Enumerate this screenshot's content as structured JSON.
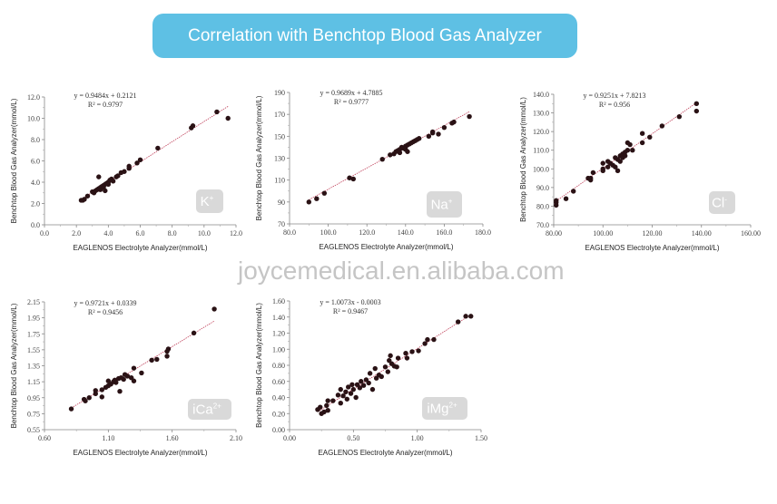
{
  "title": "Correlation with Benchtop Blood Gas Analyzer",
  "watermark": "joycemedical.en.alibaba.com",
  "colors": {
    "title_bg": "#5ec0e4",
    "point": "#2a1215",
    "fit_line": "#c0405a",
    "badge_bg": "#d9d9d9"
  },
  "chart_data": [
    {
      "type": "scatter",
      "analyte": "K",
      "badge": "K",
      "badge_sup": "+",
      "equation": "y = 0.9484x + 0.2121",
      "r2": "R² = 0.9797",
      "fit": {
        "slope": 0.9484,
        "intercept": 0.2121,
        "x_range": [
          2.3,
          11.5
        ]
      },
      "xlabel": "EAGLENOS Electrolyte Analyzer(mmol/L)",
      "ylabel": "Benchtop Blood Gas Analyzer(mmol/L)",
      "xlim": [
        0,
        12
      ],
      "ylim": [
        0,
        12
      ],
      "xticks": [
        "0.0",
        "2.0",
        "4.0",
        "6.0",
        "8.0",
        "10.0",
        "12.0"
      ],
      "yticks": [
        "0.0",
        "2.0",
        "4.0",
        "6.0",
        "8.0",
        "10.0",
        "12.0"
      ],
      "points": [
        [
          2.3,
          2.3
        ],
        [
          2.4,
          2.3
        ],
        [
          2.5,
          2.4
        ],
        [
          2.7,
          2.7
        ],
        [
          3.0,
          3.1
        ],
        [
          3.1,
          3.0
        ],
        [
          3.2,
          3.2
        ],
        [
          3.3,
          3.3
        ],
        [
          3.4,
          4.5
        ],
        [
          3.4,
          3.4
        ],
        [
          3.5,
          3.5
        ],
        [
          3.5,
          3.3
        ],
        [
          3.6,
          3.6
        ],
        [
          3.7,
          3.7
        ],
        [
          3.7,
          3.5
        ],
        [
          3.8,
          3.8
        ],
        [
          3.8,
          3.2
        ],
        [
          3.9,
          3.9
        ],
        [
          4.0,
          4.0
        ],
        [
          4.0,
          3.8
        ],
        [
          4.1,
          4.2
        ],
        [
          4.2,
          4.3
        ],
        [
          4.3,
          4.1
        ],
        [
          4.5,
          4.5
        ],
        [
          4.6,
          4.6
        ],
        [
          4.8,
          4.9
        ],
        [
          5.0,
          5.0
        ],
        [
          5.3,
          5.5
        ],
        [
          5.3,
          5.3
        ],
        [
          5.8,
          5.8
        ],
        [
          6.0,
          6.1
        ],
        [
          7.1,
          7.2
        ],
        [
          9.2,
          9.1
        ],
        [
          9.3,
          9.3
        ],
        [
          10.8,
          10.6
        ],
        [
          11.5,
          10.0
        ]
      ]
    },
    {
      "type": "scatter",
      "analyte": "Na",
      "badge": "Na",
      "badge_sup": "+",
      "equation": "y = 0.9689x + 4.7885",
      "r2": "R² = 0.9777",
      "fit": {
        "slope": 0.9689,
        "intercept": 4.7885,
        "x_range": [
          90,
          173
        ]
      },
      "xlabel": "EAGLENOS Electrolyte Analyzer(mmol/L)",
      "ylabel": "Benchtop Blood Gas Analyzer(mmol/L)",
      "xlim": [
        80,
        180
      ],
      "ylim": [
        70,
        190
      ],
      "xticks": [
        "80.0",
        "100.0",
        "120.0",
        "140.0",
        "160.0",
        "180.0"
      ],
      "yticks": [
        "70",
        "90",
        "110",
        "130",
        "150",
        "170",
        "190"
      ],
      "points": [
        [
          90,
          90
        ],
        [
          94,
          93
        ],
        [
          98,
          98
        ],
        [
          111,
          112
        ],
        [
          113,
          111
        ],
        [
          128,
          129
        ],
        [
          132,
          133
        ],
        [
          134,
          134
        ],
        [
          135,
          136
        ],
        [
          136,
          137
        ],
        [
          137,
          138
        ],
        [
          137,
          135
        ],
        [
          138,
          140
        ],
        [
          139,
          139
        ],
        [
          140,
          141
        ],
        [
          140,
          138
        ],
        [
          141,
          142
        ],
        [
          141,
          136
        ],
        [
          142,
          143
        ],
        [
          143,
          144
        ],
        [
          144,
          145
        ],
        [
          145,
          146
        ],
        [
          146,
          147
        ],
        [
          147,
          148
        ],
        [
          152,
          150
        ],
        [
          154,
          153
        ],
        [
          154,
          154
        ],
        [
          157,
          152
        ],
        [
          160,
          158
        ],
        [
          164,
          162
        ],
        [
          165,
          163
        ],
        [
          173,
          168
        ]
      ]
    },
    {
      "type": "scatter",
      "analyte": "Cl",
      "badge": "Cl",
      "badge_sup": "-",
      "equation": "y = 0.9251x + 7.8213",
      "r2": "R² = 0.956",
      "fit": {
        "slope": 0.9251,
        "intercept": 7.8213,
        "x_range": [
          81,
          138
        ]
      },
      "xlabel": "EAGLENOS Electrolyte Analyzer(mmol/L)",
      "ylabel": "Benchtop Blood Gas Analyzer(mmol/L)",
      "xlim": [
        80,
        160
      ],
      "ylim": [
        70,
        140
      ],
      "xticks": [
        "80.00",
        "100.00",
        "120.00",
        "140.00",
        "160.00"
      ],
      "yticks": [
        "70.0",
        "80.0",
        "90.0",
        "100.0",
        "110.0",
        "120.0",
        "130.0",
        "140.0"
      ],
      "points": [
        [
          81,
          83
        ],
        [
          81,
          82
        ],
        [
          81,
          80.5
        ],
        [
          85,
          84
        ],
        [
          88,
          88
        ],
        [
          94,
          95
        ],
        [
          95,
          94
        ],
        [
          95,
          95
        ],
        [
          96,
          98
        ],
        [
          100,
          103
        ],
        [
          100,
          99
        ],
        [
          100,
          100
        ],
        [
          102,
          101
        ],
        [
          102,
          104
        ],
        [
          103,
          103
        ],
        [
          104,
          102
        ],
        [
          105,
          106
        ],
        [
          105,
          101
        ],
        [
          106,
          105
        ],
        [
          106,
          99
        ],
        [
          107,
          107
        ],
        [
          107,
          104
        ],
        [
          108,
          108
        ],
        [
          108,
          106
        ],
        [
          109,
          109
        ],
        [
          109,
          107
        ],
        [
          110,
          110
        ],
        [
          110,
          114
        ],
        [
          111,
          113
        ],
        [
          112,
          110
        ],
        [
          116,
          119
        ],
        [
          116,
          114
        ],
        [
          119,
          117
        ],
        [
          124,
          123
        ],
        [
          131,
          128
        ],
        [
          138,
          135
        ],
        [
          138,
          131
        ]
      ]
    },
    {
      "type": "scatter",
      "analyte": "iCa",
      "badge": "iCa",
      "badge_sup": "2+",
      "equation": "y = 0.9721x + 0.0339",
      "r2": "R² = 0.9456",
      "fit": {
        "slope": 0.9721,
        "intercept": 0.0339,
        "x_range": [
          0.81,
          1.93
        ]
      },
      "xlabel": "EAGLENOS Electrolyte Analyzer(mmol/L)",
      "ylabel": "Benchtop Blood Gas Analyzer(mmol/L)",
      "xlim": [
        0.6,
        2.1
      ],
      "ylim": [
        0.55,
        2.15
      ],
      "xticks": [
        "0.60",
        "1.10",
        "1.60",
        "2.10"
      ],
      "yticks": [
        "0.55",
        "0.75",
        "0.95",
        "1.15",
        "1.35",
        "1.55",
        "1.75",
        "1.95",
        "2.15"
      ],
      "points": [
        [
          0.81,
          0.81
        ],
        [
          0.91,
          0.93
        ],
        [
          0.92,
          0.91
        ],
        [
          0.95,
          0.95
        ],
        [
          1.0,
          1.0
        ],
        [
          1.0,
          1.04
        ],
        [
          1.05,
          0.96
        ],
        [
          1.05,
          1.05
        ],
        [
          1.08,
          1.08
        ],
        [
          1.1,
          1.16
        ],
        [
          1.1,
          1.1
        ],
        [
          1.12,
          1.12
        ],
        [
          1.14,
          1.15
        ],
        [
          1.15,
          1.17
        ],
        [
          1.16,
          1.14
        ],
        [
          1.18,
          1.19
        ],
        [
          1.19,
          1.03
        ],
        [
          1.2,
          1.2
        ],
        [
          1.22,
          1.18
        ],
        [
          1.23,
          1.24
        ],
        [
          1.25,
          1.22
        ],
        [
          1.28,
          1.2
        ],
        [
          1.3,
          1.32
        ],
        [
          1.3,
          1.16
        ],
        [
          1.36,
          1.26
        ],
        [
          1.44,
          1.42
        ],
        [
          1.48,
          1.43
        ],
        [
          1.56,
          1.53
        ],
        [
          1.56,
          1.47
        ],
        [
          1.57,
          1.56
        ],
        [
          1.77,
          1.76
        ],
        [
          1.93,
          2.06
        ]
      ]
    },
    {
      "type": "scatter",
      "analyte": "iMg",
      "badge": "iMg",
      "badge_sup": "2+",
      "equation": "y = 1.0073x - 0.0003",
      "r2": "R² = 0.9467",
      "fit": {
        "slope": 1.0073,
        "intercept": -0.0003,
        "x_range": [
          0.22,
          1.42
        ]
      },
      "xlabel": "EAGLENOS Electrolyte Analyzer(mmol/L)",
      "ylabel": "Benchtop Blood Gas Analyzer(mmol/L)",
      "xlim": [
        0,
        1.5
      ],
      "ylim": [
        0,
        1.6
      ],
      "xticks": [
        "0.00",
        "0.50",
        "1.00",
        "1.50"
      ],
      "yticks": [
        "0.00",
        "0.20",
        "0.40",
        "0.60",
        "0.80",
        "1.00",
        "1.20",
        "1.40",
        "1.60"
      ],
      "points": [
        [
          0.22,
          0.25
        ],
        [
          0.24,
          0.28
        ],
        [
          0.25,
          0.2
        ],
        [
          0.27,
          0.22
        ],
        [
          0.29,
          0.3
        ],
        [
          0.3,
          0.36
        ],
        [
          0.3,
          0.24
        ],
        [
          0.34,
          0.36
        ],
        [
          0.38,
          0.43
        ],
        [
          0.4,
          0.33
        ],
        [
          0.4,
          0.5
        ],
        [
          0.42,
          0.42
        ],
        [
          0.44,
          0.47
        ],
        [
          0.45,
          0.38
        ],
        [
          0.46,
          0.53
        ],
        [
          0.48,
          0.45
        ],
        [
          0.49,
          0.56
        ],
        [
          0.5,
          0.5
        ],
        [
          0.52,
          0.4
        ],
        [
          0.53,
          0.56
        ],
        [
          0.55,
          0.52
        ],
        [
          0.56,
          0.6
        ],
        [
          0.58,
          0.55
        ],
        [
          0.6,
          0.62
        ],
        [
          0.62,
          0.58
        ],
        [
          0.63,
          0.7
        ],
        [
          0.65,
          0.5
        ],
        [
          0.67,
          0.76
        ],
        [
          0.68,
          0.64
        ],
        [
          0.7,
          0.68
        ],
        [
          0.72,
          0.66
        ],
        [
          0.75,
          0.78
        ],
        [
          0.77,
          0.72
        ],
        [
          0.78,
          0.86
        ],
        [
          0.79,
          0.92
        ],
        [
          0.8,
          0.82
        ],
        [
          0.82,
          0.79
        ],
        [
          0.84,
          0.78
        ],
        [
          0.85,
          0.89
        ],
        [
          0.91,
          0.95
        ],
        [
          0.92,
          0.89
        ],
        [
          0.96,
          0.97
        ],
        [
          1.01,
          0.98
        ],
        [
          1.06,
          1.07
        ],
        [
          1.08,
          1.12
        ],
        [
          1.13,
          1.12
        ],
        [
          1.32,
          1.34
        ],
        [
          1.38,
          1.41
        ],
        [
          1.42,
          1.41
        ]
      ]
    }
  ]
}
